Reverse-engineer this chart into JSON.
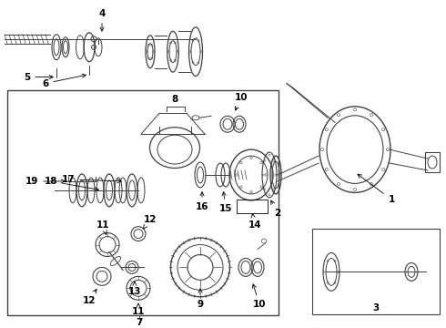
{
  "bg_color": "#ffffff",
  "lc": "#404040",
  "lw": 0.7,
  "fig_width": 4.9,
  "fig_height": 3.6,
  "dpi": 100
}
